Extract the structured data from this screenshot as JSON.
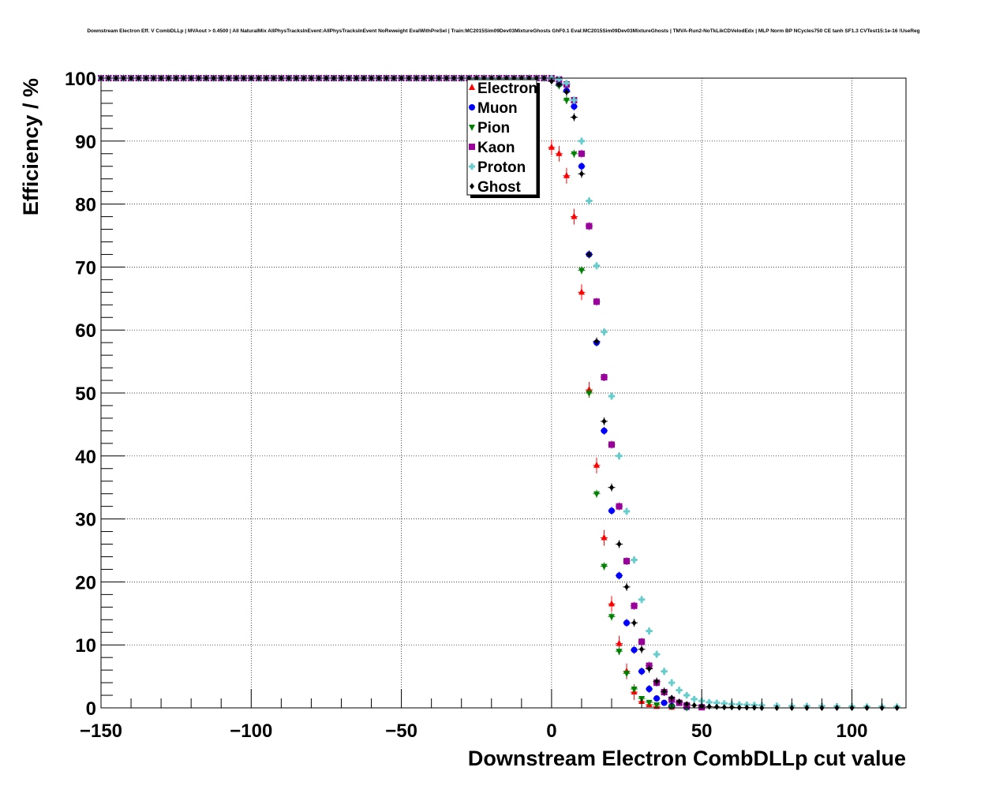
{
  "chart_data": {
    "type": "scatter",
    "title": "Downstream Electron Eff. V CombDLLp | MVAout > 0.4500 | All NaturalMix AllPhysTracksInEvent:AllPhysTracksInEvent NoReweight EvalWithPreSel | Train:MC2015Sim09Dev03MixtureGhosts GhF0.1 Eval:MC2015Sim09Dev03MixtureGhosts | TMVA-Run2-NoTkLikCDVelodEdx | MLP Norm BP NCycles750 CE tanh SF1.3 CVTest15:1e-16 !UseReg",
    "xlabel": "Downstream Electron CombDLLp cut value",
    "ylabel": "Efficiency / %",
    "xlim": [
      -150,
      118
    ],
    "ylim": [
      0,
      100
    ],
    "xticks": [
      -150,
      -100,
      -50,
      0,
      50,
      100
    ],
    "xtick_labels": [
      "−150",
      "−100",
      "−50",
      "0",
      "50",
      "100"
    ],
    "yticks": [
      0,
      10,
      20,
      30,
      40,
      50,
      60,
      70,
      80,
      90,
      100
    ],
    "ytick_labels": [
      "0",
      "10",
      "20",
      "30",
      "40",
      "50",
      "60",
      "70",
      "80",
      "90",
      "100"
    ],
    "grid": true,
    "legend_position": "top-center",
    "series": [
      {
        "name": "Electron",
        "color": "#ff0000",
        "marker": "triangle-up",
        "x": [
          0,
          2.5,
          5,
          7.5,
          10,
          12.5,
          15,
          17.5,
          20,
          22.5,
          25,
          27.5,
          30,
          32.5,
          35,
          40,
          45,
          50
        ],
        "y": [
          89,
          88,
          84.5,
          78,
          66,
          50.5,
          38.5,
          27,
          16.5,
          10.2,
          5.8,
          2.5,
          1.0,
          0.5,
          0.2,
          0.1,
          0.05,
          0
        ]
      },
      {
        "name": "Muon",
        "color": "#0000ff",
        "marker": "circle",
        "x": [
          -2.5,
          0,
          2.5,
          5,
          7.5,
          10,
          12.5,
          15,
          17.5,
          20,
          22.5,
          25,
          27.5,
          30,
          32.5,
          35,
          37.5,
          40,
          45
        ],
        "y": [
          100,
          99.8,
          99,
          98,
          95.5,
          86,
          72,
          58,
          44,
          31.3,
          21,
          13.5,
          9.2,
          5.8,
          3.0,
          1.5,
          0.8,
          0.3,
          0.1
        ]
      },
      {
        "name": "Pion",
        "color": "#008000",
        "marker": "triangle-down",
        "x": [
          0,
          2.5,
          5,
          7.5,
          10,
          12.5,
          15,
          17.5,
          20,
          22.5,
          25,
          27.5,
          30,
          32.5,
          35,
          40,
          45
        ],
        "y": [
          99.6,
          98.8,
          96.5,
          88,
          69.5,
          50,
          34,
          22.5,
          14.5,
          9.0,
          5.5,
          3.0,
          1.5,
          0.9,
          0.5,
          0.2,
          0.05
        ]
      },
      {
        "name": "Kaon",
        "color": "#990099",
        "marker": "square",
        "x": [
          2.5,
          5,
          7.5,
          10,
          12.5,
          15,
          17.5,
          20,
          22.5,
          25,
          27.5,
          30,
          32.5,
          35,
          37.5,
          40,
          42.5,
          45,
          50
        ],
        "y": [
          99.8,
          99,
          96.5,
          88,
          76.5,
          64.5,
          52.5,
          41.8,
          32,
          23.3,
          16.2,
          10.5,
          6.7,
          4.0,
          2.5,
          1.3,
          0.8,
          0.4,
          0.1
        ]
      },
      {
        "name": "Proton",
        "color": "#66cccc",
        "marker": "cross",
        "x": [
          2.5,
          5,
          7.5,
          10,
          12.5,
          15,
          17.5,
          20,
          22.5,
          25,
          27.5,
          30,
          32.5,
          35,
          37.5,
          40,
          42.5,
          45,
          47.5,
          50,
          52.5,
          55,
          57.5,
          60,
          62.5,
          65,
          67.5,
          70,
          75,
          80,
          85,
          90,
          95,
          100,
          105,
          110,
          115
        ],
        "y": [
          99.8,
          99.2,
          96.5,
          90,
          80.5,
          70.2,
          59.7,
          49.5,
          40,
          31.2,
          23.5,
          17.2,
          12.2,
          8.5,
          5.8,
          4.0,
          2.8,
          2.0,
          1.4,
          1.1,
          0.9,
          0.8,
          0.7,
          0.6,
          0.55,
          0.5,
          0.45,
          0.4,
          0.35,
          0.3,
          0.3,
          0.3,
          0.25,
          0.25,
          0.2,
          0.2,
          0.2
        ]
      },
      {
        "name": "Ghost",
        "color": "#000000",
        "marker": "diamond",
        "x": [
          0,
          2.5,
          5,
          7.5,
          10,
          12.5,
          15,
          17.5,
          20,
          22.5,
          25,
          27.5,
          30,
          32.5,
          35,
          37.5,
          40,
          42.5,
          45,
          47.5,
          50,
          52.5,
          55,
          57.5,
          60,
          62.5,
          65,
          67.5,
          70,
          75,
          80,
          85,
          90,
          95,
          100,
          105,
          110,
          115
        ],
        "y": [
          99.5,
          99,
          97.8,
          93.8,
          84.8,
          72,
          58.2,
          45.5,
          35,
          26,
          19.2,
          13.5,
          9.3,
          6.2,
          4.2,
          2.6,
          1.6,
          1.0,
          0.6,
          0.4,
          0.3,
          0.2,
          0.15,
          0.1,
          0.1,
          0.05,
          0.05,
          0.05,
          0,
          0,
          0,
          0,
          0,
          0,
          0,
          0,
          0,
          0
        ]
      }
    ]
  }
}
